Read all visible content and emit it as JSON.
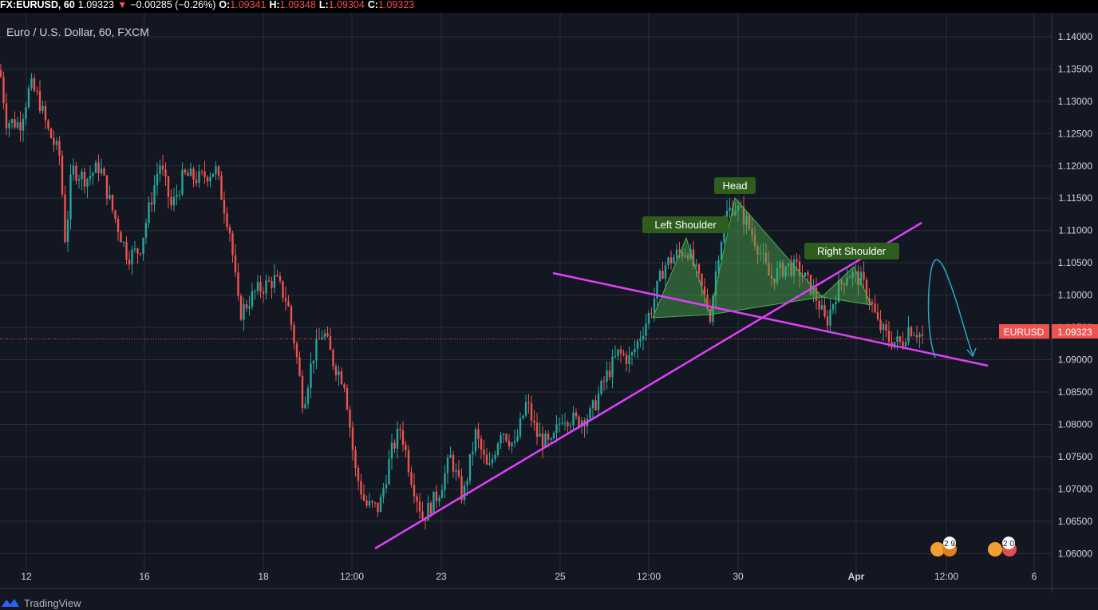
{
  "header": {
    "symbol": "FX:EURUSD, 60",
    "price": "1.09323",
    "change_arrow": "▼",
    "change": "−0.00285 (−0.26%)",
    "o_label": "O:",
    "o_value": "1.09341",
    "h_label": "H:",
    "h_value": "1.09348",
    "l_label": "L:",
    "l_value": "1.09304",
    "c_label": "C:",
    "c_value": "1.09323"
  },
  "subtitle": "Euro / U.S. Dollar, 60, FXCM",
  "price_badge": {
    "symbol": "EURUSD",
    "value": "1.09323",
    "color": "#ef5350"
  },
  "footer": {
    "brand": "TradingView"
  },
  "events": [
    {
      "label": "2 9"
    },
    {
      "label": "2 0"
    }
  ],
  "colors": {
    "up": "#26a69a",
    "down": "#ef5350",
    "trendline": "#e040fb",
    "pattern_fill": "#4caf50",
    "arrow": "#2ca6c9",
    "background": "#131722"
  },
  "chart_data": {
    "type": "candlestick",
    "title": "Euro / U.S. Dollar, 60, FXCM",
    "y_ticks": [
      1.14,
      1.135,
      1.13,
      1.125,
      1.12,
      1.115,
      1.11,
      1.105,
      1.1,
      1.095,
      1.09,
      1.085,
      1.08,
      1.075,
      1.07,
      1.065,
      1.06
    ],
    "x_ticks": [
      "12",
      "16",
      "18",
      "12:00",
      "23",
      "25",
      "12:00",
      "30",
      "Apr",
      "12:00",
      "6"
    ],
    "ylim": [
      1.0567,
      1.1437
    ],
    "price_path": [
      [
        0,
        1.1348
      ],
      [
        8,
        1.127
      ],
      [
        25,
        1.1265
      ],
      [
        38,
        1.1325
      ],
      [
        48,
        1.1305
      ],
      [
        60,
        1.1255
      ],
      [
        75,
        1.1215
      ],
      [
        82,
        1.108
      ],
      [
        90,
        1.1195
      ],
      [
        108,
        1.118
      ],
      [
        125,
        1.12
      ],
      [
        140,
        1.1135
      ],
      [
        160,
        1.106
      ],
      [
        175,
        1.107
      ],
      [
        200,
        1.1205
      ],
      [
        215,
        1.1135
      ],
      [
        230,
        1.1185
      ],
      [
        250,
        1.118
      ],
      [
        270,
        1.1195
      ],
      [
        288,
        1.11
      ],
      [
        300,
        1.097
      ],
      [
        320,
        1.1005
      ],
      [
        345,
        1.1025
      ],
      [
        360,
        1.099
      ],
      [
        370,
        1.092
      ],
      [
        380,
        1.083
      ],
      [
        392,
        1.0905
      ],
      [
        405,
        1.0945
      ],
      [
        418,
        1.0895
      ],
      [
        432,
        1.0865
      ],
      [
        445,
        1.073
      ],
      [
        458,
        1.0675
      ],
      [
        475,
        1.067
      ],
      [
        490,
        1.0755
      ],
      [
        502,
        1.0795
      ],
      [
        515,
        1.072
      ],
      [
        530,
        1.0655
      ],
      [
        550,
        1.0695
      ],
      [
        565,
        1.075
      ],
      [
        580,
        1.0685
      ],
      [
        596,
        1.0785
      ],
      [
        612,
        1.0725
      ],
      [
        628,
        1.0795
      ],
      [
        645,
        1.0765
      ],
      [
        660,
        1.0835
      ],
      [
        672,
        1.0785
      ],
      [
        690,
        1.0765
      ],
      [
        705,
        1.0815
      ],
      [
        722,
        1.0805
      ],
      [
        740,
        1.0815
      ],
      [
        760,
        1.0875
      ],
      [
        775,
        1.091
      ],
      [
        790,
        1.09
      ],
      [
        800,
        1.093
      ],
      [
        815,
        1.0975
      ],
      [
        832,
        1.1045
      ],
      [
        850,
        1.1065
      ],
      [
        862,
        1.107
      ],
      [
        875,
        1.1025
      ],
      [
        890,
        1.097
      ],
      [
        900,
        1.1065
      ],
      [
        910,
        1.1125
      ],
      [
        920,
        1.114
      ],
      [
        935,
        1.1115
      ],
      [
        950,
        1.1075
      ],
      [
        965,
        1.1025
      ],
      [
        985,
        1.1045
      ],
      [
        1000,
        1.104
      ],
      [
        1015,
        1.1015
      ],
      [
        1025,
        1.099
      ],
      [
        1035,
        1.0955
      ],
      [
        1048,
        1.1005
      ],
      [
        1062,
        1.1035
      ],
      [
        1078,
        1.1025
      ],
      [
        1090,
        1.0995
      ],
      [
        1100,
        1.0955
      ],
      [
        1115,
        1.093
      ],
      [
        1130,
        1.0925
      ],
      [
        1138,
        1.095
      ],
      [
        1148,
        1.0945
      ],
      [
        1158,
        1.0932
      ]
    ],
    "last_price": 1.09323,
    "trendlines": [
      {
        "from": [
          "Mar 19 12:00",
          1.0588
        ],
        "to": [
          "Apr 1",
          1.1109
        ]
      },
      {
        "from": [
          "Mar 25",
          1.103
        ],
        "to": [
          "Apr 2",
          1.0885
        ]
      }
    ],
    "pattern": {
      "name": "Head and Shoulders",
      "labels": [
        "Left Shoulder",
        "Head",
        "Right Shoulder"
      ],
      "points": [
        {
          "label": "Left Shoulder",
          "price": 1.1085
        },
        {
          "label": "Head",
          "price": 1.1145
        },
        {
          "label": "Right Shoulder",
          "price": 1.105
        }
      ],
      "neckline": [
        1.0955,
        1.0975
      ]
    },
    "projection": {
      "from": 1.1045,
      "to": 1.0895
    }
  }
}
